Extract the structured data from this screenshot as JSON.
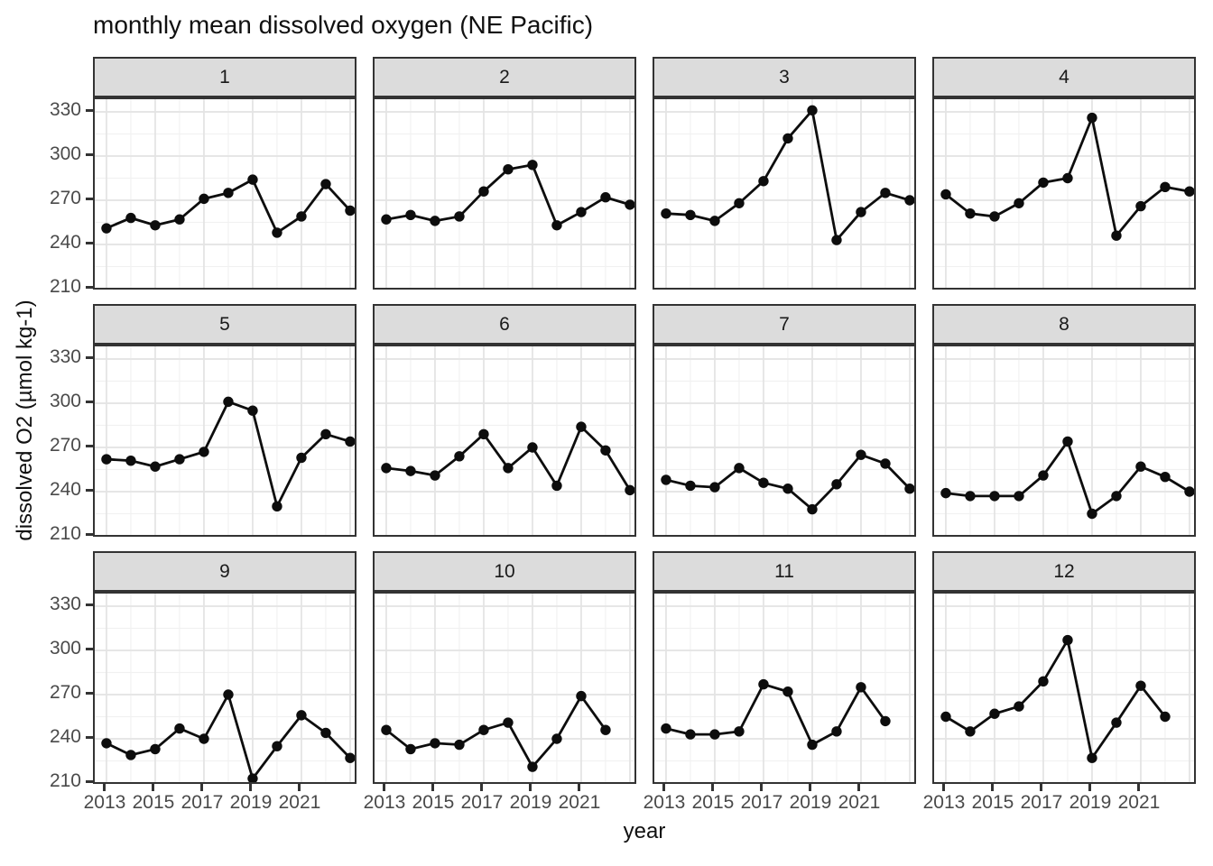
{
  "title": "monthly mean dissolved oxygen (NE Pacific)",
  "chart_data": {
    "type": "line",
    "title": "monthly mean dissolved oxygen (NE Pacific)",
    "xlabel": "year",
    "ylabel": "dissolved O2 (µmol kg-1)",
    "facet_variable": "month",
    "legend": "none",
    "grid": true,
    "x_ticks": [
      2013,
      2015,
      2017,
      2019,
      2021
    ],
    "y_ticks": [
      210,
      240,
      270,
      300,
      330
    ],
    "x_minor": [
      2014,
      2016,
      2018,
      2020,
      2022
    ],
    "y_minor": [
      225,
      255,
      285,
      315
    ],
    "x_grid_major": [
      2013,
      2015,
      2017,
      2019,
      2021,
      2023
    ],
    "x_domain": [
      2012.52,
      2023.33
    ],
    "y_domain": [
      208.6,
      338.6
    ],
    "facets": [
      {
        "label": "1",
        "years": [
          2013,
          2014,
          2015,
          2016,
          2017,
          2018,
          2019,
          2020,
          2021,
          2022,
          2023
        ],
        "values": [
          251,
          258,
          253,
          257,
          271,
          275,
          284,
          248,
          259,
          281,
          263
        ]
      },
      {
        "label": "2",
        "years": [
          2013,
          2014,
          2015,
          2016,
          2017,
          2018,
          2019,
          2020,
          2021,
          2022,
          2023
        ],
        "values": [
          257,
          260,
          256,
          259,
          276,
          291,
          294,
          253,
          262,
          272,
          267
        ]
      },
      {
        "label": "3",
        "years": [
          2013,
          2014,
          2015,
          2016,
          2017,
          2018,
          2019,
          2020,
          2021,
          2022,
          2023
        ],
        "values": [
          261,
          260,
          256,
          268,
          283,
          312,
          331,
          243,
          262,
          275,
          270
        ]
      },
      {
        "label": "4",
        "years": [
          2013,
          2014,
          2015,
          2016,
          2017,
          2018,
          2019,
          2020,
          2021,
          2022,
          2023
        ],
        "values": [
          274,
          261,
          259,
          268,
          282,
          285,
          326,
          246,
          266,
          279,
          276
        ]
      },
      {
        "label": "5",
        "years": [
          2013,
          2014,
          2015,
          2016,
          2017,
          2018,
          2019,
          2020,
          2021,
          2022,
          2023
        ],
        "values": [
          262,
          261,
          257,
          262,
          267,
          301,
          295,
          230,
          263,
          279,
          274
        ]
      },
      {
        "label": "6",
        "years": [
          2013,
          2014,
          2015,
          2016,
          2017,
          2018,
          2019,
          2020,
          2021,
          2022,
          2023
        ],
        "values": [
          256,
          254,
          251,
          264,
          279,
          256,
          270,
          244,
          284,
          268,
          241
        ]
      },
      {
        "label": "7",
        "years": [
          2013,
          2014,
          2015,
          2016,
          2017,
          2018,
          2019,
          2020,
          2021,
          2022,
          2023
        ],
        "values": [
          248,
          244,
          243,
          256,
          246,
          242,
          228,
          245,
          265,
          259,
          242
        ]
      },
      {
        "label": "8",
        "years": [
          2013,
          2014,
          2015,
          2016,
          2017,
          2018,
          2019,
          2020,
          2021,
          2022,
          2023
        ],
        "values": [
          239,
          237,
          237,
          237,
          251,
          274,
          225,
          237,
          257,
          250,
          240
        ]
      },
      {
        "label": "9",
        "years": [
          2013,
          2014,
          2015,
          2016,
          2017,
          2018,
          2019,
          2020,
          2021,
          2022,
          2023
        ],
        "values": [
          237,
          229,
          233,
          247,
          240,
          270,
          213,
          235,
          256,
          244,
          227
        ]
      },
      {
        "label": "10",
        "years": [
          2013,
          2014,
          2015,
          2016,
          2017,
          2018,
          2019,
          2020,
          2021,
          2022
        ],
        "values": [
          246,
          233,
          237,
          236,
          246,
          251,
          221,
          240,
          269,
          246
        ]
      },
      {
        "label": "11",
        "years": [
          2013,
          2014,
          2015,
          2016,
          2017,
          2018,
          2019,
          2020,
          2021,
          2022
        ],
        "values": [
          247,
          243,
          243,
          245,
          277,
          272,
          236,
          245,
          275,
          252
        ]
      },
      {
        "label": "12",
        "years": [
          2013,
          2014,
          2015,
          2016,
          2017,
          2018,
          2019,
          2020,
          2021,
          2022
        ],
        "values": [
          255,
          245,
          257,
          262,
          279,
          307,
          227,
          251,
          276,
          255
        ]
      }
    ],
    "colors": {
      "line": "#0d0d0d",
      "point": "#0d0d0d",
      "strip_bg": "#dcdcdc",
      "panel_border": "#333333",
      "grid_major": "#e3e3e3",
      "grid_minor": "#f1f1f1",
      "tick_label": "#4a4a4a",
      "text": "#111111"
    }
  }
}
